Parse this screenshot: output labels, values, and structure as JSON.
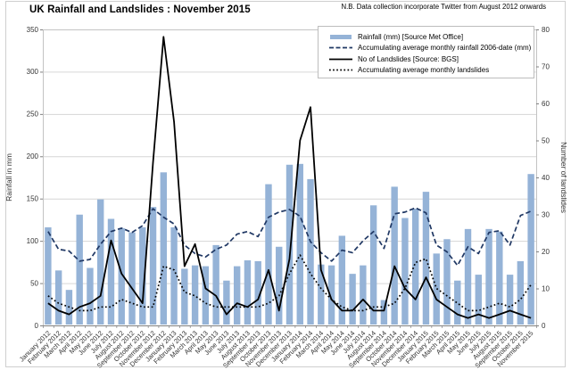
{
  "title": "UK Rainfall and Landslides : November 2015",
  "note": "N.B. Data collection incorporate Twitter from August 2012 onwards",
  "chart_data": {
    "type": "bar+line",
    "title": "UK Rainfall and Landslides : November 2015",
    "categories": [
      "January 2012",
      "February 2012",
      "March 2012",
      "April 2012",
      "May 2012",
      "June 2012",
      "July 2012",
      "August 2012",
      "September 2012",
      "October 2012",
      "November 2012",
      "December 2012",
      "January 2013",
      "February 2013",
      "March 2013",
      "April 2013",
      "May 2013",
      "June 2013",
      "July 2013",
      "August 2013",
      "September 2013",
      "October 2013",
      "November 2013",
      "December 2013",
      "January 2014",
      "February 2014",
      "March 2014",
      "April 2014",
      "May 2014",
      "June 2014",
      "July 2014",
      "August 2014",
      "September 2014",
      "October 2014",
      "November 2014",
      "December 2014",
      "January 2015",
      "February 2015",
      "March 2015",
      "April 2015",
      "May 2015",
      "June 2015",
      "July 2015",
      "August 2015",
      "September 2015",
      "October 2015",
      "November 2015"
    ],
    "series": [
      {
        "name": "Rainfall (mm) [Source Met Office]",
        "style": "bar",
        "axis": "left",
        "values": [
          116,
          65,
          42,
          131,
          68,
          149,
          126,
          115,
          110,
          116,
          140,
          181,
          116,
          67,
          71,
          70,
          95,
          53,
          70,
          77,
          76,
          167,
          93,
          190,
          191,
          173,
          72,
          71,
          106,
          61,
          71,
          142,
          30,
          164,
          127,
          138,
          158,
          85,
          102,
          53,
          114,
          60,
          114,
          111,
          60,
          76,
          179
        ]
      },
      {
        "name": "Accumulating average monthly rainfall 2006-date (mm)",
        "style": "dashed",
        "axis": "left",
        "values": [
          111,
          90,
          88,
          76,
          78,
          96,
          111,
          115,
          110,
          118,
          138,
          128,
          120,
          95,
          85,
          81,
          90,
          95,
          108,
          111,
          105,
          128,
          134,
          137,
          129,
          99,
          86,
          76,
          89,
          86,
          100,
          111,
          91,
          132,
          134,
          139,
          133,
          95,
          87,
          71,
          93,
          85,
          110,
          112,
          95,
          130,
          135
        ]
      },
      {
        "name": "No of Landslides [Source: BGS]",
        "style": "solid",
        "axis": "right",
        "values": [
          6,
          4,
          3,
          5,
          6,
          8,
          23,
          14,
          10,
          6,
          44,
          78,
          55,
          16,
          22,
          10,
          8,
          3,
          6,
          5,
          7,
          15,
          4,
          18,
          50,
          59,
          15,
          7,
          4,
          4,
          7,
          4,
          4,
          16,
          10,
          7,
          13,
          7,
          5,
          3,
          2,
          3,
          2,
          3,
          4,
          3,
          2
        ]
      },
      {
        "name": "Accumulating average monthly landslides",
        "style": "dotted",
        "axis": "right",
        "values": [
          8,
          6,
          5,
          4,
          4,
          5,
          5,
          7,
          6,
          5,
          5,
          16,
          15,
          9,
          8,
          6,
          5,
          5,
          5,
          5,
          5,
          6,
          8,
          14,
          19,
          14,
          10,
          7,
          5,
          4,
          4,
          5,
          5,
          6,
          10,
          17,
          18,
          10,
          8,
          6,
          4,
          4,
          5,
          6,
          5,
          7,
          11
        ]
      }
    ],
    "left_axis": {
      "title": "Rainfall in mm",
      "min": 0,
      "max": 350,
      "step": 50,
      "ticks": [
        "0",
        "50",
        "100",
        "150",
        "200",
        "250",
        "300",
        "350"
      ]
    },
    "right_axis": {
      "title": "Number of landslides",
      "min": 0,
      "max": 80,
      "step": 10,
      "ticks": [
        "0",
        "10",
        "20",
        "30",
        "40",
        "50",
        "60",
        "70",
        "80"
      ]
    },
    "legend_position": "top-right-inside",
    "grid": true,
    "colors": {
      "bar": "#95B3D7",
      "dashed_line": "#203864",
      "solid_line": "#000000",
      "dotted_line": "#000000",
      "gridline": "#D6D6D6",
      "plot_border": "#C3C3C3",
      "axis_line": "#808080",
      "tick_text": "#333333",
      "chart_border": "#CFCFCF"
    }
  }
}
